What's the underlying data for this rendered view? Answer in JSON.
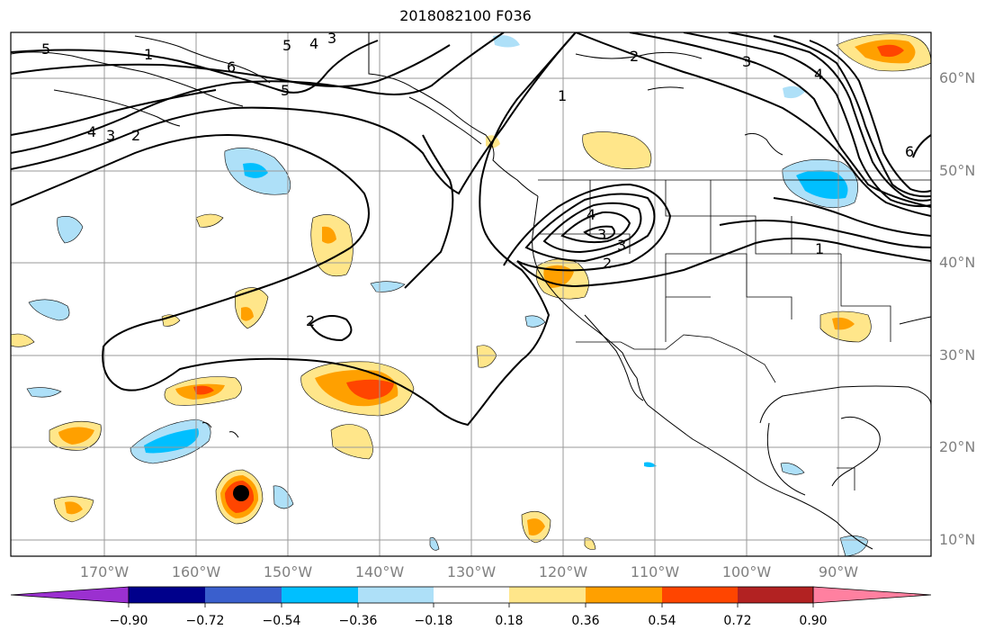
{
  "title": "2018082100 F036",
  "lat_labels": [
    "60°N",
    "50°N",
    "40°N",
    "30°N",
    "20°N",
    "10°N"
  ],
  "lon_labels": [
    "170°W",
    "160°W",
    "150°W",
    "140°W",
    "130°W",
    "120°W",
    "110°W",
    "100°W",
    "90°W"
  ],
  "contour_labels": [
    "5",
    "4",
    "3",
    "6",
    "5",
    "4",
    "3",
    "2",
    "1",
    "2",
    "3",
    "4",
    "5",
    "6",
    "1",
    "4",
    "3",
    "2",
    "3",
    "2",
    "1"
  ],
  "colorbar": {
    "tick_labels": [
      "−0.90",
      "−0.72",
      "−0.54",
      "−0.36",
      "−0.18",
      "0.18",
      "0.36",
      "0.54",
      "0.72",
      "0.90"
    ],
    "colors": [
      "#9b30d0",
      "#00008b",
      "#3a5fcd",
      "#00bfff",
      "#aee0f8",
      "#ffffff",
      "#ffe68a",
      "#ffa000",
      "#ff4500",
      "#b22222",
      "#ff80a0"
    ]
  },
  "colors": {
    "land_line": "#000000",
    "grid": "#999999",
    "contour": "#000000",
    "storm_center": "#000000"
  }
}
